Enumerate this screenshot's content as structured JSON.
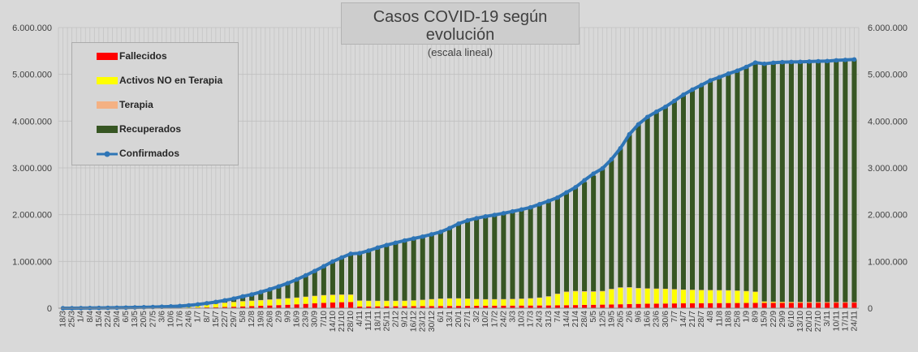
{
  "chart_data": {
    "type": "bar",
    "title": "Casos COVID-19 según evolución",
    "subtitle": "(escala lineal)",
    "ylim": [
      0,
      6000000
    ],
    "y_ticks": [
      "0",
      "1.000.000",
      "2.000.000",
      "3.000.000",
      "4.000.000",
      "5.000.000",
      "6.000.000"
    ],
    "x_tick_labels": [
      "18/3",
      "25/3",
      "1/4",
      "8/4",
      "15/4",
      "22/4",
      "29/4",
      "6/5",
      "13/5",
      "20/5",
      "27/5",
      "3/6",
      "10/6",
      "17/6",
      "24/6",
      "1/7",
      "8/7",
      "15/7",
      "22/7",
      "29/7",
      "5/8",
      "12/8",
      "19/8",
      "26/8",
      "2/9",
      "9/9",
      "16/9",
      "23/9",
      "30/9",
      "7/10",
      "14/10",
      "21/10",
      "28/10",
      "4/11",
      "11/11",
      "18/11",
      "25/11",
      "2/12",
      "9/12",
      "16/12",
      "23/12",
      "30/12",
      "6/1",
      "13/1",
      "20/1",
      "27/1",
      "3/2",
      "10/2",
      "17/2",
      "24/2",
      "3/3",
      "10/3",
      "17/3",
      "24/3",
      "31/3",
      "7/4",
      "14/4",
      "21/4",
      "28/4",
      "5/5",
      "12/5",
      "19/5",
      "26/5",
      "2/6",
      "9/6",
      "16/6",
      "23/6",
      "30/6",
      "7/7",
      "14/7",
      "21/7",
      "28/7",
      "4/8",
      "11/8",
      "18/8",
      "25/8",
      "1/9",
      "8/9",
      "15/9",
      "22/9",
      "29/9",
      "6/10",
      "13/10",
      "20/10",
      "27/10",
      "3/11",
      "10/11",
      "17/11",
      "24/11"
    ],
    "legend_position": "top-left",
    "grid": true,
    "series": [
      {
        "name": "Fallecidos",
        "color": "#ff0000",
        "kind": "stacked-bar",
        "values": [
          0,
          0,
          100,
          500,
          1000,
          2000,
          2500,
          3200,
          4000,
          5000,
          6000,
          7000,
          8000,
          9000,
          11000,
          14000,
          17000,
          21000,
          26000,
          32000,
          38000,
          44000,
          51000,
          58000,
          66000,
          74000,
          83000,
          93000,
          104000,
          114000,
          122000,
          128000,
          132000,
          35000,
          38000,
          40000,
          41000,
          42000,
          43000,
          44000,
          45000,
          46000,
          47000,
          48000,
          49000,
          50000,
          51000,
          52000,
          53000,
          54000,
          55000,
          56000,
          57000,
          58000,
          59000,
          61000,
          64000,
          67000,
          70000,
          73000,
          76000,
          80000,
          84000,
          88000,
          92000,
          96000,
          98000,
          100000,
          102000,
          104000,
          106000,
          107000,
          108000,
          109000,
          110000,
          111000,
          112000,
          113000,
          114000,
          114500,
          115000,
          115500,
          116000,
          116500,
          117000,
          117500,
          118000,
          118500,
          119000
        ]
      },
      {
        "name": "Activos NO en Terapia",
        "color": "#ffff00",
        "kind": "stacked-bar",
        "values": [
          0,
          0,
          1000,
          1500,
          2000,
          2500,
          3000,
          4000,
          6000,
          8000,
          10000,
          14000,
          18000,
          24000,
          32000,
          45000,
          60000,
          75000,
          90000,
          100000,
          110000,
          115000,
          120000,
          125000,
          130000,
          135000,
          140000,
          148000,
          155000,
          160000,
          160000,
          158000,
          155000,
          125000,
          118000,
          115000,
          115000,
          114000,
          115000,
          122000,
          132000,
          145000,
          155000,
          160000,
          160000,
          152000,
          142000,
          137000,
          137000,
          137000,
          140000,
          145000,
          152000,
          165000,
          190000,
          240000,
          280000,
          290000,
          280000,
          275000,
          280000,
          320000,
          350000,
          350000,
          330000,
          320000,
          315000,
          310000,
          300000,
          290000,
          285000,
          280000,
          278000,
          275000,
          272000,
          265000,
          255000,
          240000,
          30000,
          25000,
          20000,
          18000,
          16000,
          15000,
          14000,
          13000,
          12000,
          11500,
          11000
        ]
      },
      {
        "name": "Terapia",
        "color": "#f4b183",
        "kind": "stacked-bar",
        "values": [
          0,
          0,
          200,
          400,
          500,
          500,
          500,
          500,
          500,
          600,
          700,
          900,
          1100,
          1300,
          1600,
          2000,
          2400,
          2800,
          3200,
          3500,
          3800,
          4000,
          4200,
          4500,
          4800,
          5200,
          5700,
          6200,
          6600,
          6800,
          6700,
          6400,
          6000,
          5500,
          5000,
          4600,
          4300,
          4000,
          3800,
          3600,
          3500,
          3500,
          3600,
          3700,
          3800,
          3700,
          3600,
          3500,
          3400,
          3400,
          3500,
          3800,
          4200,
          5000,
          6500,
          9000,
          11500,
          13000,
          13500,
          13000,
          12500,
          12500,
          12000,
          11000,
          9500,
          8000,
          7000,
          6000,
          5200,
          4500,
          3800,
          3200,
          2800,
          2500,
          2200,
          2000,
          1800,
          1600,
          1400,
          1300,
          1200,
          1100,
          1000,
          1000,
          900,
          900,
          900,
          900,
          900
        ]
      },
      {
        "name": "Recuperados",
        "color": "#375623",
        "kind": "stacked-bar",
        "values": [
          0,
          0,
          200,
          1000,
          2000,
          3000,
          4000,
          5000,
          6000,
          7000,
          8000,
          9000,
          10000,
          12000,
          16000,
          20000,
          26000,
          34000,
          48000,
          70000,
          100000,
          130000,
          170000,
          215000,
          265000,
          320000,
          385000,
          455000,
          530000,
          615000,
          710000,
          790000,
          870000,
          1010000,
          1070000,
          1135000,
          1190000,
          1240000,
          1285000,
          1320000,
          1350000,
          1385000,
          1425000,
          1500000,
          1585000,
          1660000,
          1720000,
          1765000,
          1800000,
          1835000,
          1870000,
          1905000,
          1945000,
          1995000,
          2035000,
          2055000,
          2120000,
          2205000,
          2335000,
          2475000,
          2620000,
          2770000,
          2974000,
          3270000,
          3511000,
          3664000,
          3782000,
          3889000,
          4026000,
          4166000,
          4279000,
          4383000,
          4484000,
          4552000,
          4630000,
          4700000,
          4790000,
          4885000,
          5077000,
          5104000,
          5122000,
          5129000,
          5135000,
          5142000,
          5148000,
          5151000,
          5168000,
          5177000,
          5188000
        ]
      },
      {
        "name": "Confirmados",
        "color": "#2e75b6",
        "kind": "line",
        "values": [
          0,
          0,
          1500,
          3400,
          5500,
          8000,
          10000,
          12700,
          16500,
          20600,
          24700,
          30900,
          37100,
          46300,
          60600,
          81000,
          105400,
          132800,
          167200,
          205500,
          251800,
          293000,
          345200,
          402500,
          465800,
          534200,
          613700,
          702200,
          795600,
          895600,
          998700,
          1082400,
          1163000,
          1175500,
          1231000,
          1294600,
          1350300,
          1400000,
          1446800,
          1489600,
          1530500,
          1579500,
          1630600,
          1711700,
          1807500,
          1875700,
          1923500,
          1962500,
          1993800,
          2029500,
          2068900,
          2110000,
          2155700,
          2223000,
          2291000,
          2365000,
          2475000,
          2585000,
          2735000,
          2876000,
          2988000,
          3182000,
          3420000,
          3719000,
          3932000,
          4088000,
          4200000,
          4305000,
          4433000,
          4564000,
          4673000,
          4770000,
          4870000,
          4938000,
          5014000,
          5078000,
          5159000,
          5252000,
          5224900,
          5247800,
          5260200,
          5264600,
          5267000,
          5273500,
          5280400,
          5283400,
          5299900,
          5308400,
          5318900
        ]
      }
    ]
  }
}
